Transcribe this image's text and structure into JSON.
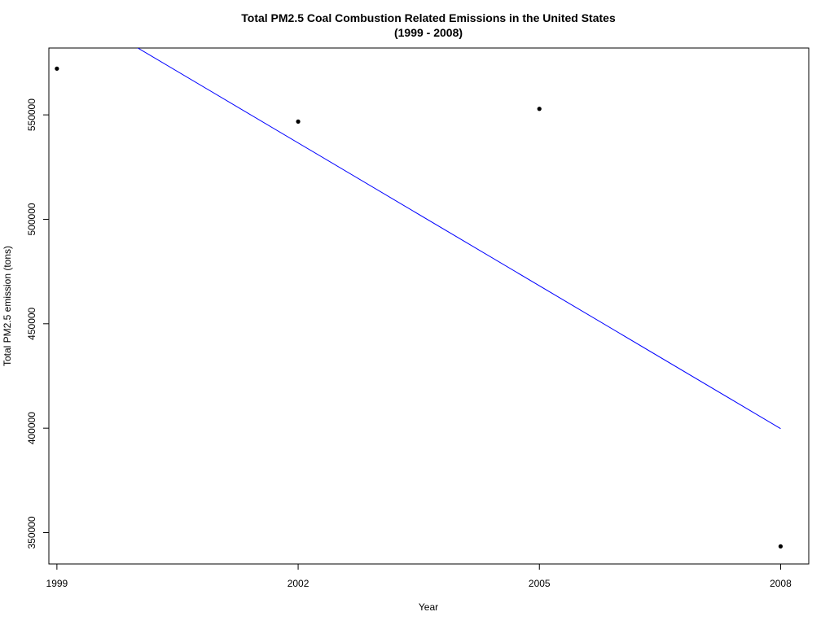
{
  "chart_data": {
    "type": "scatter",
    "title": "Total PM2.5 Coal Combustion Related Emissions in the United States",
    "subtitle": "(1999 - 2008)",
    "xlabel": "Year",
    "ylabel": "Total PM2.5 emission (tons)",
    "x_ticks": [
      "1999",
      "2002",
      "2005",
      "2008"
    ],
    "y_ticks": [
      "350000",
      "400000",
      "450000",
      "500000",
      "550000"
    ],
    "xlim": [
      1998.9,
      2008.35
    ],
    "ylim": [
      335000,
      582000
    ],
    "points": [
      {
        "x": 1999,
        "y": 572127
      },
      {
        "x": 2002,
        "y": 546789
      },
      {
        "x": 2005,
        "y": 552881
      },
      {
        "x": 2008,
        "y": 343432
      }
    ],
    "trendline": {
      "color": "#0000ff",
      "x": [
        1999,
        2008
      ],
      "y": [
        604950,
        399800
      ]
    },
    "point_color": "#000000",
    "grid": false,
    "legend": "none"
  }
}
